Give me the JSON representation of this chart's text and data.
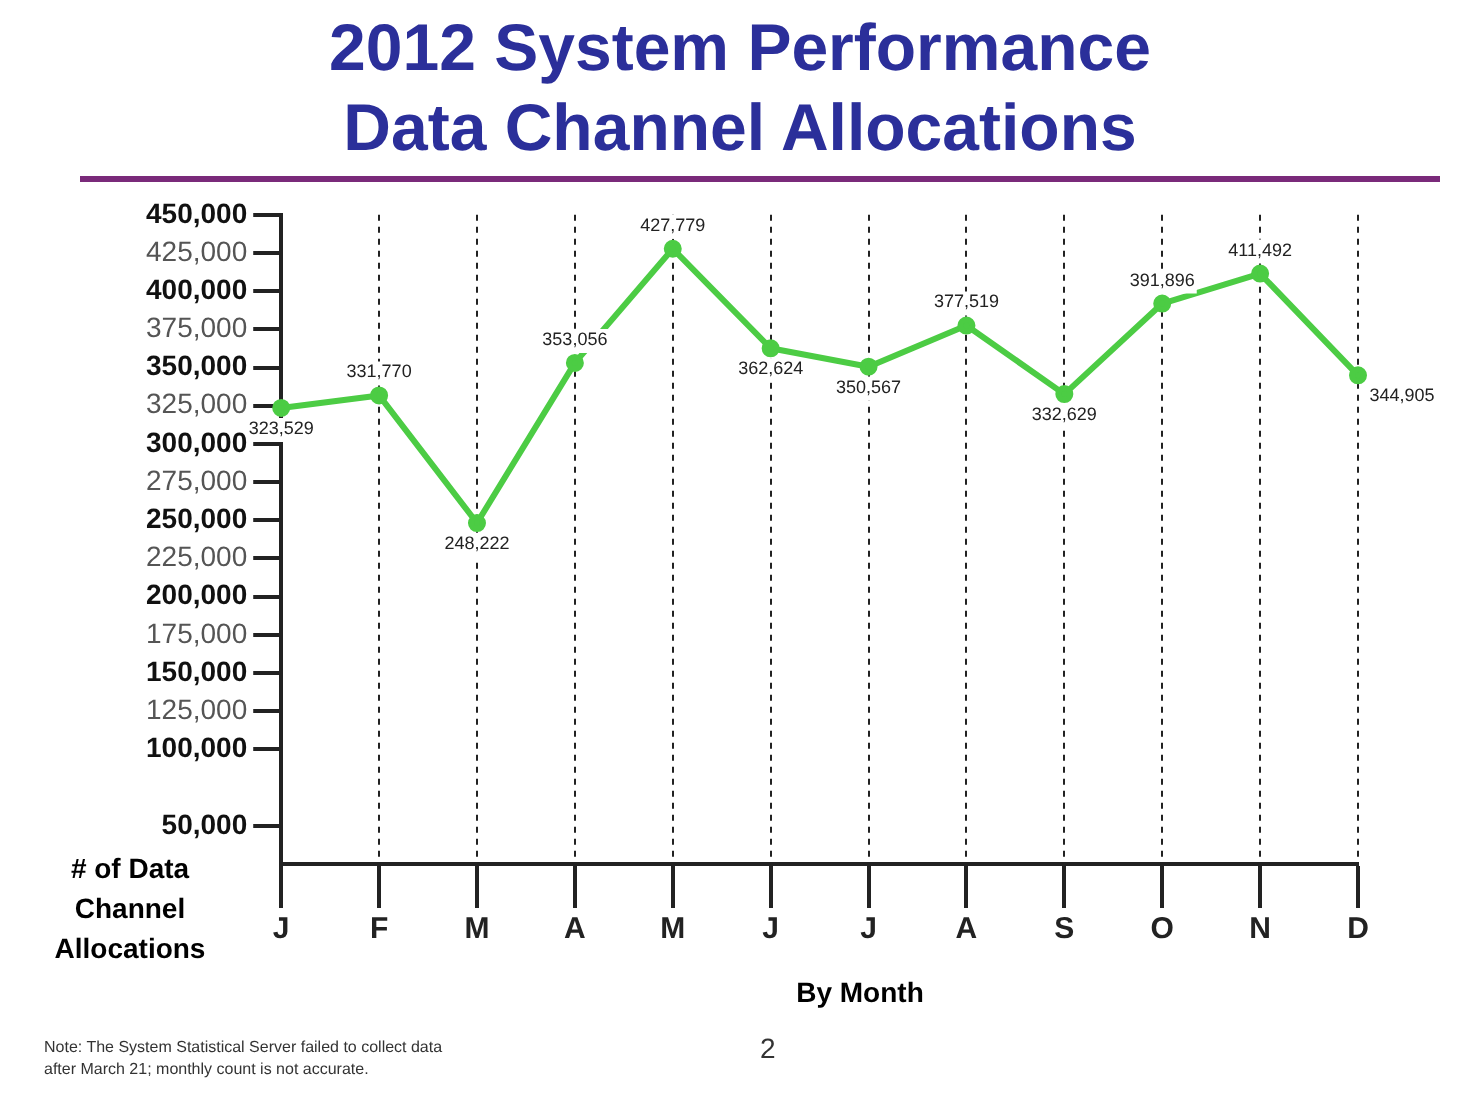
{
  "chart_data": {
    "type": "line",
    "title": "2012 System Performance Data Channel Allocations",
    "xlabel": "By Month",
    "ylabel": "# of Data Channel Allocations",
    "categories": [
      "J",
      "F",
      "M",
      "A",
      "M",
      "J",
      "J",
      "A",
      "S",
      "O",
      "N",
      "D"
    ],
    "series": [
      {
        "color": "#4ccc44",
        "values": [
          323529,
          331770,
          248222,
          353056,
          427779,
          362624,
          350567,
          377519,
          332629,
          391896,
          411492,
          344905
        ]
      }
    ],
    "ylim": [
      25000,
      450000
    ],
    "yticks": [
      {
        "value": 50000,
        "label": "50,000"
      },
      {
        "value": 100000,
        "label": "100,000"
      },
      {
        "value": 125000,
        "label": "125,000"
      },
      {
        "value": 150000,
        "label": "150,000"
      },
      {
        "value": 175000,
        "label": "175,000"
      },
      {
        "value": 200000,
        "label": "200,000"
      },
      {
        "value": 225000,
        "label": "225,000"
      },
      {
        "value": 250000,
        "label": "250,000"
      },
      {
        "value": 275000,
        "label": "275,000"
      },
      {
        "value": 300000,
        "label": "300,000"
      },
      {
        "value": 325000,
        "label": "325,000"
      },
      {
        "value": 350000,
        "label": "350,000"
      },
      {
        "value": 375000,
        "label": "375,000"
      },
      {
        "value": 400000,
        "label": "400,000"
      },
      {
        "value": 425000,
        "label": "425,000"
      },
      {
        "value": 450000,
        "label": "450,000"
      }
    ],
    "value_labels": [
      "323,529",
      "331,770",
      "248,222",
      "353,056",
      "427,779",
      "362,624",
      "350,567",
      "377,519",
      "332,629",
      "391,896",
      "411,492",
      "344,905"
    ],
    "grid": "x",
    "marker": "circle",
    "line_style": "solid",
    "legend": false,
    "annotations": [
      "Note:  The System Statistical Server failed to collect data after March 21; monthly count is not accurate.",
      "2"
    ]
  }
}
